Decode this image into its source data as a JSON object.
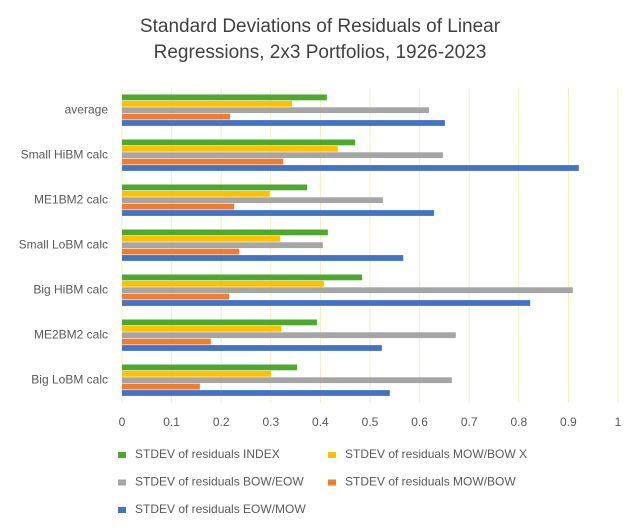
{
  "chart_data": {
    "type": "hbar",
    "title": "Standard Deviations of Residuals of Linear Regressions, 2x3 Portfolios, 1926-2023",
    "categories": [
      "average",
      "Small HiBM calc",
      "ME1BM2 calc",
      "Small LoBM calc",
      "Big HiBM calc",
      "ME2BM2 calc",
      "Big LoBM calc"
    ],
    "series": [
      {
        "name": "STDEV of residuals INDEX",
        "color": "#4ea72e",
        "values": [
          0.413,
          0.47,
          0.373,
          0.415,
          0.484,
          0.393,
          0.353
        ]
      },
      {
        "name": "STDEV of residuals MOW/BOW X",
        "color": "#ffc000",
        "values": [
          0.343,
          0.435,
          0.298,
          0.319,
          0.407,
          0.321,
          0.3
        ]
      },
      {
        "name": "STDEV of residuals BOW/EOW",
        "color": "#a5a5a5",
        "values": [
          0.619,
          0.647,
          0.526,
          0.405,
          0.909,
          0.673,
          0.665
        ]
      },
      {
        "name": "STDEV of residuals MOW/BOW",
        "color": "#ed7d31",
        "values": [
          0.218,
          0.325,
          0.226,
          0.236,
          0.216,
          0.179,
          0.157
        ]
      },
      {
        "name": "STDEV of residuals EOW/MOW",
        "color": "#4472c4",
        "values": [
          0.651,
          0.921,
          0.629,
          0.567,
          0.823,
          0.524,
          0.54
        ]
      }
    ],
    "xlim": [
      0,
      1
    ],
    "xticks": [
      0,
      0.1,
      0.2,
      0.3,
      0.4,
      0.5,
      0.6,
      0.7,
      0.8,
      0.9,
      1
    ],
    "grid": true
  }
}
